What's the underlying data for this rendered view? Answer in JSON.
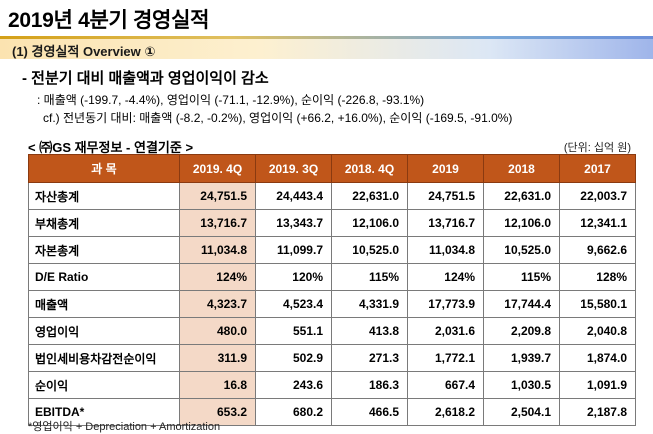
{
  "page": {
    "title": "2019년 4분기 경영실적",
    "section": "(1) 경영실적 Overview ①",
    "heading": "- 전분기 대비 매출액과 영업이익이 감소",
    "bullet1": ": 매출액 (-199.7, -4.4%), 영업이익 (-71.1, -12.9%), 순이익 (-226.8, -93.1%)",
    "bullet2": "cf.) 전년동기 대비: 매출액 (-8.2, -0.2%), 영업이익 (+66.2, +16.0%), 순이익 (-169.5, -91.0%)",
    "table_title": "< ㈜GS 재무정보 - 연결기준 >",
    "unit": "(단위: 십억 원)",
    "footnote": "*영업이익 + Depreciation + Amortization"
  },
  "table": {
    "headers": [
      "과  목",
      "2019. 4Q",
      "2019. 3Q",
      "2018. 4Q",
      "2019",
      "2018",
      "2017"
    ],
    "rows": [
      {
        "label": "자산총계",
        "values": [
          "24,751.5",
          "24,443.4",
          "22,631.0",
          "24,751.5",
          "22,631.0",
          "22,003.7"
        ]
      },
      {
        "label": "부채총계",
        "values": [
          "13,716.7",
          "13,343.7",
          "12,106.0",
          "13,716.7",
          "12,106.0",
          "12,341.1"
        ]
      },
      {
        "label": "자본총계",
        "values": [
          "11,034.8",
          "11,099.7",
          "10,525.0",
          "11,034.8",
          "10,525.0",
          "9,662.6"
        ]
      },
      {
        "label": "D/E Ratio",
        "values": [
          "124%",
          "120%",
          "115%",
          "124%",
          "115%",
          "128%"
        ]
      },
      {
        "label": "매출액",
        "values": [
          "4,323.7",
          "4,523.4",
          "4,331.9",
          "17,773.9",
          "17,744.4",
          "15,580.1"
        ]
      },
      {
        "label": "영업이익",
        "values": [
          "480.0",
          "551.1",
          "413.8",
          "2,031.6",
          "2,209.8",
          "2,040.8"
        ]
      },
      {
        "label": "법인세비용차감전순이익",
        "values": [
          "311.9",
          "502.9",
          "271.3",
          "1,772.1",
          "1,939.7",
          "1,874.0"
        ]
      },
      {
        "label": "순이익",
        "values": [
          "16.8",
          "243.6",
          "186.3",
          "667.4",
          "1,030.5",
          "1,091.9"
        ]
      },
      {
        "label": "EBITDA*",
        "values": [
          "653.2",
          "680.2",
          "466.5",
          "2,618.2",
          "2,504.1",
          "2,187.8"
        ]
      }
    ]
  }
}
